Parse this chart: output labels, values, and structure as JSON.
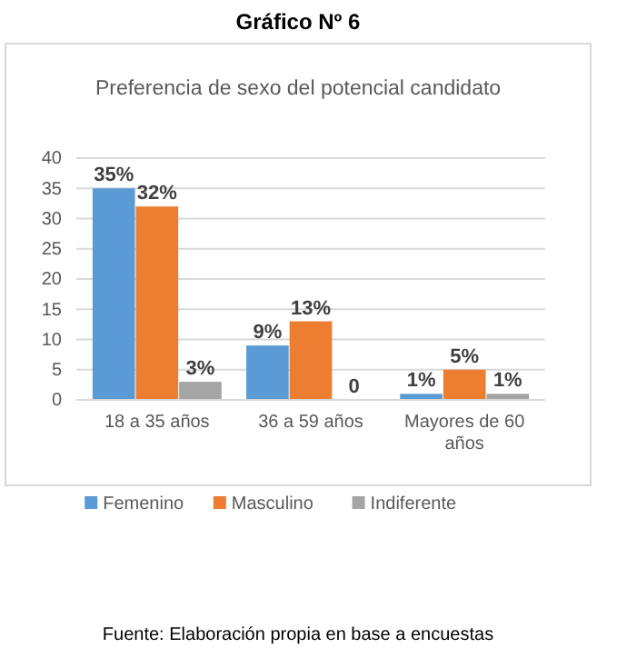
{
  "chart_data": {
    "type": "bar",
    "title": "Gráfico Nº 6",
    "subtitle": "Preferencia de sexo del potencial candidato",
    "categories": [
      "18 a 35 años",
      "36 a 59 años",
      "Mayores de 60 años"
    ],
    "series": [
      {
        "name": "Femenino",
        "color": "#5b9bd5",
        "values": [
          35,
          9,
          1
        ],
        "value_labels": [
          "35%",
          "9%",
          "1%"
        ]
      },
      {
        "name": "Masculino",
        "color": "#ed7d31",
        "values": [
          32,
          13,
          5
        ],
        "value_labels": [
          "32%",
          "13%",
          "5%"
        ]
      },
      {
        "name": "Indiferente",
        "color": "#a5a5a5",
        "values": [
          3,
          0,
          1
        ],
        "value_labels": [
          "3%",
          "0",
          "1%"
        ]
      }
    ],
    "ylim": [
      0,
      40
    ],
    "yticks": [
      0,
      5,
      10,
      15,
      20,
      25,
      30,
      35,
      40
    ],
    "grid": "y",
    "legend": "bottom",
    "annotations": [
      "Fuente: Elaboración propia en base a encuestas"
    ]
  }
}
